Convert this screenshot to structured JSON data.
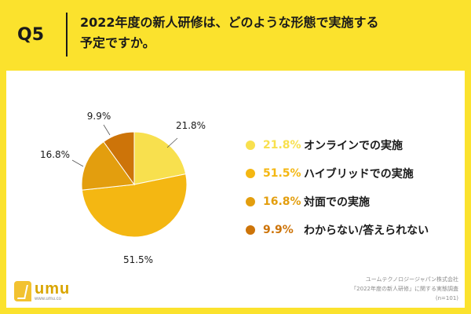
{
  "header": {
    "question_label": "Q5",
    "title_line1": "2022年度の新人研修は、どのような形態で実施する",
    "title_line2": "予定ですか。"
  },
  "chart_data": {
    "type": "pie",
    "slices": [
      {
        "label": "オンラインでの実施",
        "value": 21.8,
        "display": "21.8%",
        "color": "#F8E04E"
      },
      {
        "label": "ハイブリッドでの実施",
        "value": 51.5,
        "display": "51.5%",
        "color": "#F4B712"
      },
      {
        "label": "対面での実施",
        "value": 16.8,
        "display": "16.8%",
        "color": "#E39E0E"
      },
      {
        "label": "わからない/答えられない",
        "value": 9.9,
        "display": "9.9%",
        "color": "#CD7409"
      }
    ],
    "legend_position": "right"
  },
  "logo": {
    "wordmark": "umu",
    "url": "www.umu.co"
  },
  "source": {
    "line1": "ユームテクノロジージャパン株式会社",
    "line2": "「2022年度の新人研修」に関する実態調査",
    "line3": "(n=101)"
  }
}
